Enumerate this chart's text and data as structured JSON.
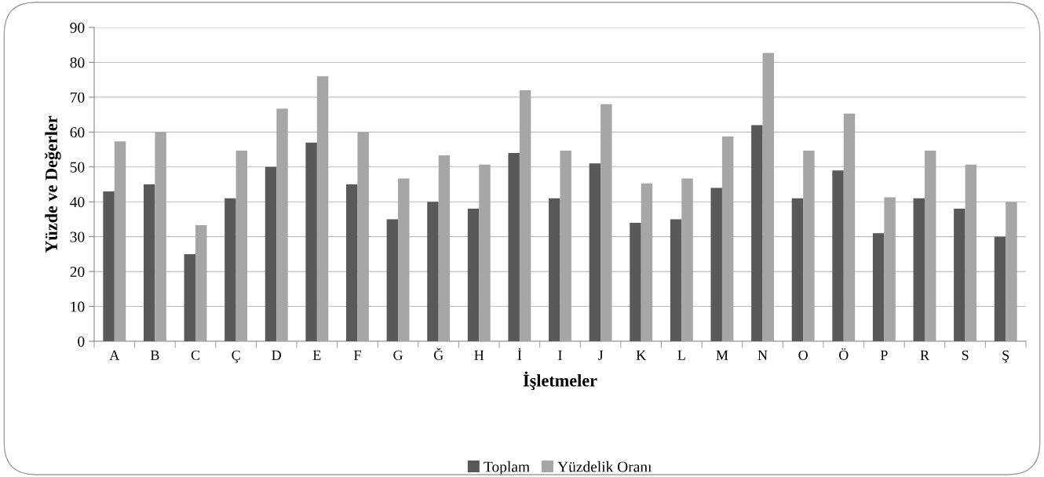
{
  "chart_data": {
    "type": "bar",
    "xlabel": "İşletmeler",
    "ylabel": "Yüzde ve Değerler",
    "categories": [
      "A",
      "B",
      "C",
      "Ç",
      "D",
      "E",
      "F",
      "G",
      "Ğ",
      "H",
      "İ",
      "I",
      "J",
      "K",
      "L",
      "M",
      "N",
      "O",
      "Ö",
      "P",
      "R",
      "S",
      "Ş"
    ],
    "series": [
      {
        "name": "Toplam",
        "color": "#595959",
        "values": [
          43,
          45,
          25,
          41,
          50,
          57,
          45,
          35,
          40,
          38,
          54,
          41,
          51,
          34,
          35,
          44,
          62,
          41,
          49,
          31,
          41,
          38,
          30
        ]
      },
      {
        "name": "Yüzdelik Oranı",
        "color": "#a6a6a6",
        "values": [
          57.3,
          60,
          33.3,
          54.7,
          66.7,
          76,
          60,
          46.7,
          53.3,
          50.7,
          72,
          54.7,
          68,
          45.3,
          46.7,
          58.7,
          82.7,
          54.7,
          65.3,
          41.3,
          54.7,
          50.7,
          40
        ]
      }
    ],
    "ylim": [
      0,
      90
    ],
    "yticks": [
      0,
      10,
      20,
      30,
      40,
      50,
      60,
      70,
      80,
      90
    ],
    "grid": "y",
    "legend": "bottom"
  }
}
